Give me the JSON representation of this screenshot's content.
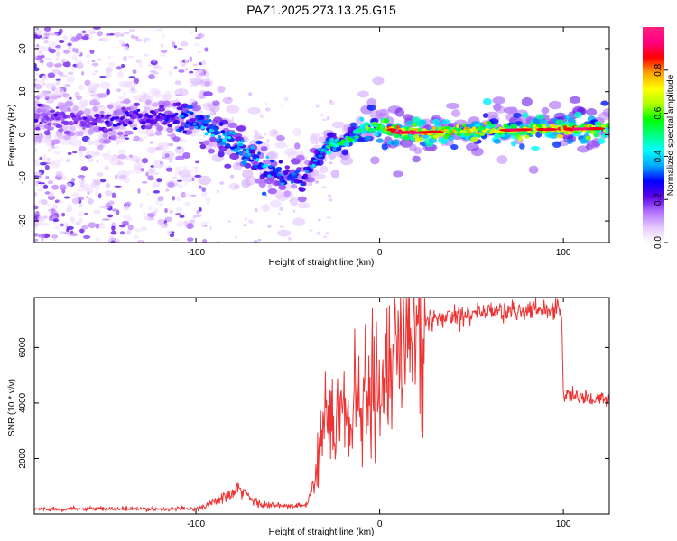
{
  "title": "PAZ1.2025.273.13.25.G15",
  "chart_data": [
    {
      "type": "heatmap",
      "title": "PAZ1.2025.273.13.25.G15",
      "xlabel": "Height of straight line (km)",
      "ylabel": "Frequency (Hz)",
      "xlim": [
        -188,
        125
      ],
      "ylim": [
        -25,
        25
      ],
      "xticks": [
        -100,
        0,
        100
      ],
      "yticks": [
        -20,
        -10,
        0,
        10,
        20
      ],
      "colorbar": {
        "label": "Normalized spectral amplitude",
        "range": [
          0,
          1
        ],
        "ticks": [
          0.0,
          0.2,
          0.4,
          0.6,
          0.8
        ],
        "colormap": [
          "#ffffff",
          "#e6c8ff",
          "#b070ff",
          "#5a00e6",
          "#0000ff",
          "#00aaff",
          "#00ffff",
          "#00ff80",
          "#00ff00",
          "#b0ff00",
          "#ffff00",
          "#ffa500",
          "#ff0000",
          "#ff0080",
          "#ff2080"
        ]
      },
      "ridge": {
        "x": [
          -180,
          -165,
          -150,
          -135,
          -120,
          -110,
          -100,
          -90,
          -80,
          -70,
          -60,
          -50,
          -42,
          -38,
          -30,
          -20,
          -10,
          0,
          5,
          10,
          20,
          40,
          60,
          80,
          100,
          125
        ],
        "y": [
          4,
          3.5,
          2.5,
          4,
          4.5,
          3,
          3.5,
          1,
          -1.5,
          -5,
          -8,
          -9.5,
          -10.5,
          -8,
          -3,
          -2,
          1,
          2,
          1.5,
          0.5,
          0.5,
          0.8,
          1,
          1.2,
          1.3,
          1.5
        ]
      },
      "ridge_amplitude": {
        "x": [
          -188,
          -120,
          -100,
          -80,
          -60,
          -50,
          -40,
          -30,
          -20,
          -10,
          0,
          5,
          10,
          20,
          40,
          60,
          80,
          100,
          125
        ],
        "values": [
          0.2,
          0.25,
          0.35,
          0.4,
          0.35,
          0.3,
          0.3,
          0.45,
          0.5,
          0.55,
          0.6,
          0.75,
          0.85,
          0.8,
          0.7,
          0.7,
          0.75,
          0.8,
          0.7
        ]
      }
    },
    {
      "type": "line",
      "xlabel": "Height of straight line (km)",
      "ylabel": "SNR (10 * v/v)",
      "xlim": [
        -188,
        125
      ],
      "ylim": [
        0,
        7800
      ],
      "xticks": [
        -100,
        0,
        100
      ],
      "yticks": [
        2000,
        4000,
        6000
      ],
      "color": "#ee3333",
      "series": [
        {
          "name": "SNR",
          "x": [
            -188,
            -100,
            -95,
            -80,
            -75,
            -70,
            -60,
            -50,
            -40,
            -36,
            -33,
            -30,
            -27,
            -25,
            -20,
            -15,
            -10,
            -5,
            0,
            5,
            10,
            15,
            20,
            30,
            40,
            50,
            60,
            70,
            80,
            90,
            99,
            100,
            101,
            110,
            125
          ],
          "y": [
            180,
            180,
            300,
            700,
            900,
            500,
            300,
            280,
            300,
            1000,
            2000,
            3000,
            3600,
            2800,
            3800,
            3300,
            4100,
            3800,
            4200,
            4800,
            5300,
            6000,
            6600,
            7000,
            7200,
            7250,
            7300,
            7300,
            7300,
            7400,
            7400,
            4400,
            4300,
            4200,
            4100
          ]
        }
      ]
    }
  ]
}
